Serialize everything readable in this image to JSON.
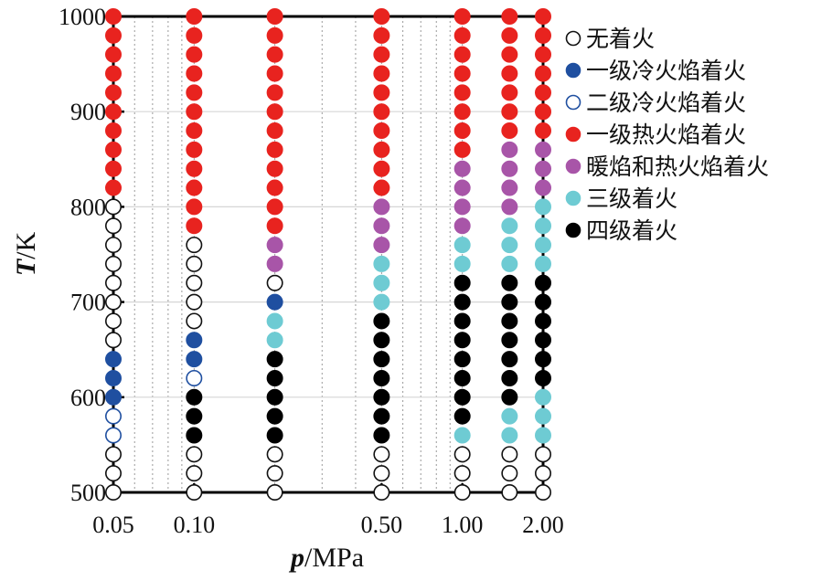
{
  "chart_data": {
    "type": "scatter",
    "x_scale": "log",
    "ylabel": {
      "var": "T",
      "unit": "K"
    },
    "xlabel": {
      "var": "p",
      "unit": "MPa"
    },
    "xlim": [
      0.05,
      2.0
    ],
    "ylim": [
      500,
      1000
    ],
    "x_ticks": [
      {
        "value": 0.05,
        "label": "0.05"
      },
      {
        "value": 0.1,
        "label": "0.10"
      },
      {
        "value": 0.5,
        "label": "0.50"
      },
      {
        "value": 1.0,
        "label": "1.00"
      },
      {
        "value": 2.0,
        "label": "2.00"
      }
    ],
    "y_ticks": [
      500,
      600,
      700,
      800,
      900,
      1000
    ],
    "minor_x_grid": [
      0.06,
      0.07,
      0.08,
      0.09,
      0.2,
      0.3,
      0.4,
      0.6,
      0.7,
      0.8,
      0.9
    ],
    "legend_position": "right",
    "categories": [
      {
        "key": "none",
        "label": "无着火",
        "fill": "#ffffff",
        "stroke": "#111111"
      },
      {
        "key": "cf1",
        "label": "一级冷火焰着火",
        "fill": "#1f4fa0",
        "stroke": "#1f4fa0"
      },
      {
        "key": "cf2",
        "label": "二级冷火焰着火",
        "fill": "#ffffff",
        "stroke": "#1f4fa0"
      },
      {
        "key": "hf1",
        "label": "一级热火焰着火",
        "fill": "#e8231f",
        "stroke": "#e8231f"
      },
      {
        "key": "warm",
        "label": "暖焰和热火焰着火",
        "fill": "#a855a8",
        "stroke": "#a855a8"
      },
      {
        "key": "stage3",
        "label": "三级着火",
        "fill": "#6ecbd3",
        "stroke": "#6ecbd3"
      },
      {
        "key": "stage4",
        "label": "四级着火",
        "fill": "#000000",
        "stroke": "#000000"
      }
    ],
    "series": [
      {
        "p": 0.05,
        "points": [
          {
            "T": 500,
            "c": "none"
          },
          {
            "T": 520,
            "c": "none"
          },
          {
            "T": 540,
            "c": "none"
          },
          {
            "T": 560,
            "c": "cf2"
          },
          {
            "T": 580,
            "c": "cf2"
          },
          {
            "T": 600,
            "c": "cf1"
          },
          {
            "T": 620,
            "c": "cf1"
          },
          {
            "T": 640,
            "c": "cf1"
          },
          {
            "T": 660,
            "c": "none"
          },
          {
            "T": 680,
            "c": "none"
          },
          {
            "T": 700,
            "c": "none"
          },
          {
            "T": 720,
            "c": "none"
          },
          {
            "T": 740,
            "c": "none"
          },
          {
            "T": 760,
            "c": "none"
          },
          {
            "T": 780,
            "c": "none"
          },
          {
            "T": 800,
            "c": "none"
          },
          {
            "T": 820,
            "c": "hf1"
          },
          {
            "T": 840,
            "c": "hf1"
          },
          {
            "T": 860,
            "c": "hf1"
          },
          {
            "T": 880,
            "c": "hf1"
          },
          {
            "T": 900,
            "c": "hf1"
          },
          {
            "T": 920,
            "c": "hf1"
          },
          {
            "T": 940,
            "c": "hf1"
          },
          {
            "T": 960,
            "c": "hf1"
          },
          {
            "T": 980,
            "c": "hf1"
          },
          {
            "T": 1000,
            "c": "hf1"
          }
        ]
      },
      {
        "p": 0.1,
        "points": [
          {
            "T": 500,
            "c": "none"
          },
          {
            "T": 520,
            "c": "none"
          },
          {
            "T": 540,
            "c": "none"
          },
          {
            "T": 560,
            "c": "stage4"
          },
          {
            "T": 580,
            "c": "stage4"
          },
          {
            "T": 600,
            "c": "stage4"
          },
          {
            "T": 620,
            "c": "cf2"
          },
          {
            "T": 640,
            "c": "cf1"
          },
          {
            "T": 660,
            "c": "cf1"
          },
          {
            "T": 680,
            "c": "none"
          },
          {
            "T": 700,
            "c": "none"
          },
          {
            "T": 720,
            "c": "none"
          },
          {
            "T": 740,
            "c": "none"
          },
          {
            "T": 760,
            "c": "none"
          },
          {
            "T": 780,
            "c": "hf1"
          },
          {
            "T": 800,
            "c": "hf1"
          },
          {
            "T": 820,
            "c": "hf1"
          },
          {
            "T": 840,
            "c": "hf1"
          },
          {
            "T": 860,
            "c": "hf1"
          },
          {
            "T": 880,
            "c": "hf1"
          },
          {
            "T": 900,
            "c": "hf1"
          },
          {
            "T": 920,
            "c": "hf1"
          },
          {
            "T": 940,
            "c": "hf1"
          },
          {
            "T": 960,
            "c": "hf1"
          },
          {
            "T": 980,
            "c": "hf1"
          },
          {
            "T": 1000,
            "c": "hf1"
          }
        ]
      },
      {
        "p": 0.2,
        "points": [
          {
            "T": 500,
            "c": "none"
          },
          {
            "T": 520,
            "c": "none"
          },
          {
            "T": 540,
            "c": "none"
          },
          {
            "T": 560,
            "c": "stage4"
          },
          {
            "T": 580,
            "c": "stage4"
          },
          {
            "T": 600,
            "c": "stage4"
          },
          {
            "T": 620,
            "c": "stage4"
          },
          {
            "T": 640,
            "c": "stage4"
          },
          {
            "T": 660,
            "c": "stage3"
          },
          {
            "T": 680,
            "c": "stage3"
          },
          {
            "T": 700,
            "c": "cf1"
          },
          {
            "T": 720,
            "c": "none"
          },
          {
            "T": 740,
            "c": "warm"
          },
          {
            "T": 760,
            "c": "warm"
          },
          {
            "T": 780,
            "c": "hf1"
          },
          {
            "T": 800,
            "c": "hf1"
          },
          {
            "T": 820,
            "c": "hf1"
          },
          {
            "T": 840,
            "c": "hf1"
          },
          {
            "T": 860,
            "c": "hf1"
          },
          {
            "T": 880,
            "c": "hf1"
          },
          {
            "T": 900,
            "c": "hf1"
          },
          {
            "T": 920,
            "c": "hf1"
          },
          {
            "T": 940,
            "c": "hf1"
          },
          {
            "T": 960,
            "c": "hf1"
          },
          {
            "T": 980,
            "c": "hf1"
          },
          {
            "T": 1000,
            "c": "hf1"
          }
        ]
      },
      {
        "p": 0.5,
        "points": [
          {
            "T": 500,
            "c": "none"
          },
          {
            "T": 520,
            "c": "none"
          },
          {
            "T": 540,
            "c": "none"
          },
          {
            "T": 560,
            "c": "stage4"
          },
          {
            "T": 580,
            "c": "stage4"
          },
          {
            "T": 600,
            "c": "stage4"
          },
          {
            "T": 620,
            "c": "stage4"
          },
          {
            "T": 640,
            "c": "stage4"
          },
          {
            "T": 660,
            "c": "stage4"
          },
          {
            "T": 680,
            "c": "stage4"
          },
          {
            "T": 700,
            "c": "stage3"
          },
          {
            "T": 720,
            "c": "stage3"
          },
          {
            "T": 740,
            "c": "stage3"
          },
          {
            "T": 760,
            "c": "warm"
          },
          {
            "T": 780,
            "c": "warm"
          },
          {
            "T": 800,
            "c": "warm"
          },
          {
            "T": 820,
            "c": "hf1"
          },
          {
            "T": 840,
            "c": "hf1"
          },
          {
            "T": 860,
            "c": "hf1"
          },
          {
            "T": 880,
            "c": "hf1"
          },
          {
            "T": 900,
            "c": "hf1"
          },
          {
            "T": 920,
            "c": "hf1"
          },
          {
            "T": 940,
            "c": "hf1"
          },
          {
            "T": 960,
            "c": "hf1"
          },
          {
            "T": 980,
            "c": "hf1"
          },
          {
            "T": 1000,
            "c": "hf1"
          }
        ]
      },
      {
        "p": 1.0,
        "points": [
          {
            "T": 500,
            "c": "none"
          },
          {
            "T": 520,
            "c": "none"
          },
          {
            "T": 540,
            "c": "none"
          },
          {
            "T": 560,
            "c": "stage3"
          },
          {
            "T": 580,
            "c": "stage4"
          },
          {
            "T": 600,
            "c": "stage4"
          },
          {
            "T": 620,
            "c": "stage4"
          },
          {
            "T": 640,
            "c": "stage4"
          },
          {
            "T": 660,
            "c": "stage4"
          },
          {
            "T": 680,
            "c": "stage4"
          },
          {
            "T": 700,
            "c": "stage4"
          },
          {
            "T": 720,
            "c": "stage4"
          },
          {
            "T": 740,
            "c": "stage3"
          },
          {
            "T": 760,
            "c": "stage3"
          },
          {
            "T": 780,
            "c": "warm"
          },
          {
            "T": 800,
            "c": "warm"
          },
          {
            "T": 820,
            "c": "warm"
          },
          {
            "T": 840,
            "c": "warm"
          },
          {
            "T": 860,
            "c": "hf1"
          },
          {
            "T": 880,
            "c": "hf1"
          },
          {
            "T": 900,
            "c": "hf1"
          },
          {
            "T": 920,
            "c": "hf1"
          },
          {
            "T": 940,
            "c": "hf1"
          },
          {
            "T": 960,
            "c": "hf1"
          },
          {
            "T": 980,
            "c": "hf1"
          },
          {
            "T": 1000,
            "c": "hf1"
          }
        ]
      },
      {
        "p": 1.5,
        "points": [
          {
            "T": 500,
            "c": "none"
          },
          {
            "T": 520,
            "c": "none"
          },
          {
            "T": 540,
            "c": "none"
          },
          {
            "T": 560,
            "c": "stage3"
          },
          {
            "T": 580,
            "c": "stage3"
          },
          {
            "T": 600,
            "c": "stage4"
          },
          {
            "T": 620,
            "c": "stage4"
          },
          {
            "T": 640,
            "c": "stage4"
          },
          {
            "T": 660,
            "c": "stage4"
          },
          {
            "T": 680,
            "c": "stage4"
          },
          {
            "T": 700,
            "c": "stage4"
          },
          {
            "T": 720,
            "c": "stage4"
          },
          {
            "T": 740,
            "c": "stage3"
          },
          {
            "T": 760,
            "c": "stage3"
          },
          {
            "T": 780,
            "c": "stage3"
          },
          {
            "T": 800,
            "c": "warm"
          },
          {
            "T": 820,
            "c": "warm"
          },
          {
            "T": 840,
            "c": "warm"
          },
          {
            "T": 860,
            "c": "warm"
          },
          {
            "T": 880,
            "c": "hf1"
          },
          {
            "T": 900,
            "c": "hf1"
          },
          {
            "T": 920,
            "c": "hf1"
          },
          {
            "T": 940,
            "c": "hf1"
          },
          {
            "T": 960,
            "c": "hf1"
          },
          {
            "T": 980,
            "c": "hf1"
          },
          {
            "T": 1000,
            "c": "hf1"
          }
        ]
      },
      {
        "p": 2.0,
        "points": [
          {
            "T": 500,
            "c": "none"
          },
          {
            "T": 520,
            "c": "none"
          },
          {
            "T": 540,
            "c": "none"
          },
          {
            "T": 560,
            "c": "stage3"
          },
          {
            "T": 580,
            "c": "stage3"
          },
          {
            "T": 600,
            "c": "stage3"
          },
          {
            "T": 620,
            "c": "stage4"
          },
          {
            "T": 640,
            "c": "stage4"
          },
          {
            "T": 660,
            "c": "stage4"
          },
          {
            "T": 680,
            "c": "stage4"
          },
          {
            "T": 700,
            "c": "stage4"
          },
          {
            "T": 720,
            "c": "stage4"
          },
          {
            "T": 740,
            "c": "stage3"
          },
          {
            "T": 760,
            "c": "stage3"
          },
          {
            "T": 780,
            "c": "stage3"
          },
          {
            "T": 800,
            "c": "stage3"
          },
          {
            "T": 820,
            "c": "warm"
          },
          {
            "T": 840,
            "c": "warm"
          },
          {
            "T": 860,
            "c": "warm"
          },
          {
            "T": 880,
            "c": "hf1"
          },
          {
            "T": 900,
            "c": "hf1"
          },
          {
            "T": 920,
            "c": "hf1"
          },
          {
            "T": 940,
            "c": "hf1"
          },
          {
            "T": 960,
            "c": "hf1"
          },
          {
            "T": 980,
            "c": "hf1"
          },
          {
            "T": 1000,
            "c": "hf1"
          }
        ]
      }
    ]
  }
}
